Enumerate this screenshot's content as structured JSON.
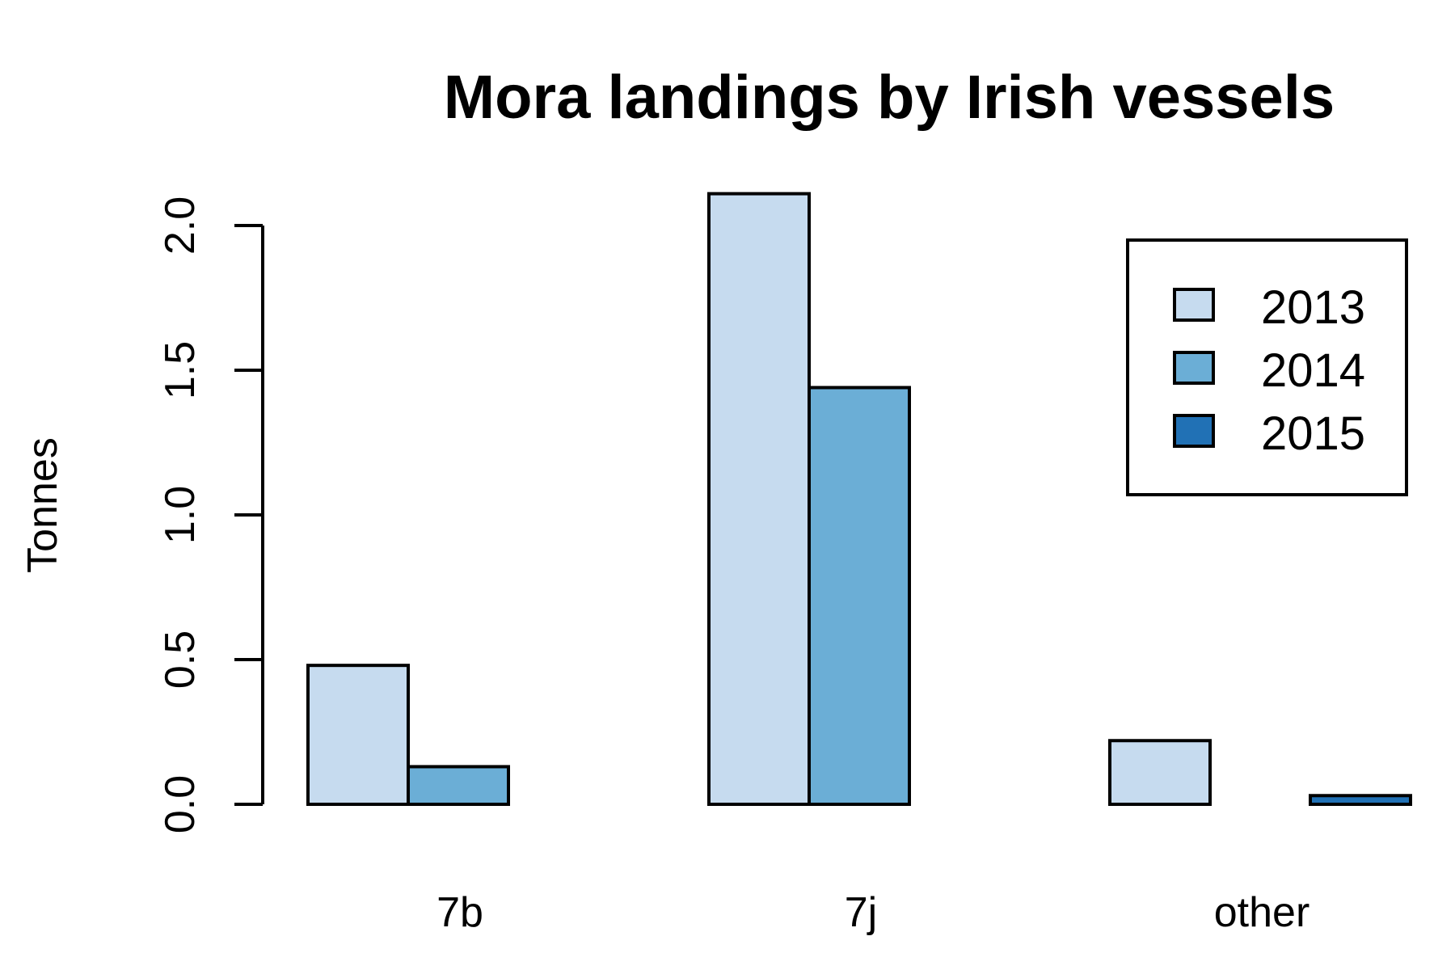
{
  "chart_data": {
    "type": "bar",
    "title": "Mora landings by Irish vessels",
    "xlabel": "",
    "ylabel": "Tonnes",
    "categories": [
      "7b",
      "7j",
      "other"
    ],
    "series": [
      {
        "name": "2013",
        "color": "#c6dbef",
        "values": [
          0.48,
          2.11,
          0.22
        ]
      },
      {
        "name": "2014",
        "color": "#6baed6",
        "values": [
          0.13,
          1.44,
          0.0
        ]
      },
      {
        "name": "2015",
        "color": "#2171b5",
        "values": [
          0.0,
          0.0,
          0.03
        ]
      }
    ],
    "ylim": [
      0,
      2.11
    ],
    "yticks": [
      "0.0",
      "0.5",
      "1.0",
      "1.5",
      "2.0"
    ],
    "legend_position": "top-right",
    "grid": false
  }
}
